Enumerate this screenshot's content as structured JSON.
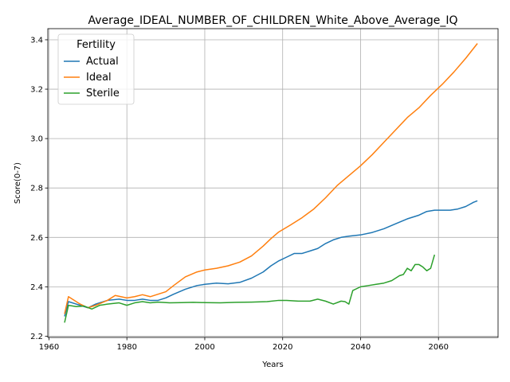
{
  "chart_data": {
    "type": "line",
    "title": "Average_IDEAL_NUMBER_OF_CHILDREN_White_Above_Average_IQ",
    "xlabel": "Years",
    "ylabel": "Score(0-7)",
    "xlim": [
      1959.7,
      2075.3
    ],
    "ylim": [
      2.195,
      3.445
    ],
    "xticks": [
      1960,
      1980,
      2000,
      2020,
      2040,
      2060
    ],
    "yticks": [
      2.2,
      2.4,
      2.6,
      2.8,
      3.0,
      3.2,
      3.4
    ],
    "xtick_labels": [
      "1960",
      "1980",
      "2000",
      "2020",
      "2040",
      "2060"
    ],
    "ytick_labels": [
      "2.2",
      "2.4",
      "2.6",
      "2.8",
      "3.0",
      "3.2",
      "3.4"
    ],
    "grid": true,
    "legend": {
      "title": "Fertility",
      "placement": "top-left"
    },
    "series": [
      {
        "name": "Actual",
        "color": "#1f77b4",
        "x": [
          1964,
          1965,
          1968,
          1970,
          1972,
          1975,
          1978,
          1980,
          1982,
          1984,
          1986,
          1988,
          1990,
          1992,
          1995,
          1998,
          2000,
          2003,
          2006,
          2009,
          2012,
          2015,
          2017,
          2019,
          2021,
          2023,
          2025,
          2027,
          2029,
          2031,
          2033,
          2035,
          2037,
          2040,
          2043,
          2046,
          2049,
          2052,
          2055,
          2057,
          2059,
          2061,
          2063,
          2065,
          2067,
          2069,
          2070
        ],
        "y": [
          2.28,
          2.34,
          2.325,
          2.315,
          2.33,
          2.345,
          2.35,
          2.345,
          2.345,
          2.35,
          2.345,
          2.345,
          2.355,
          2.37,
          2.39,
          2.405,
          2.41,
          2.415,
          2.412,
          2.418,
          2.435,
          2.46,
          2.485,
          2.505,
          2.52,
          2.535,
          2.535,
          2.545,
          2.555,
          2.575,
          2.59,
          2.6,
          2.605,
          2.61,
          2.62,
          2.635,
          2.655,
          2.675,
          2.69,
          2.705,
          2.71,
          2.71,
          2.71,
          2.715,
          2.725,
          2.742,
          2.748
        ]
      },
      {
        "name": "Ideal",
        "color": "#ff7f0e",
        "x": [
          1964,
          1965,
          1968,
          1970,
          1972,
          1975,
          1977,
          1980,
          1982,
          1984,
          1986,
          1988,
          1990,
          1992,
          1995,
          1998,
          2000,
          2003,
          2006,
          2009,
          2012,
          2015,
          2017,
          2019,
          2022,
          2025,
          2028,
          2031,
          2034,
          2037,
          2040,
          2043,
          2046,
          2049,
          2052,
          2055,
          2058,
          2061,
          2064,
          2067,
          2070
        ],
        "y": [
          2.29,
          2.36,
          2.33,
          2.315,
          2.325,
          2.345,
          2.365,
          2.355,
          2.36,
          2.368,
          2.36,
          2.37,
          2.38,
          2.405,
          2.44,
          2.46,
          2.468,
          2.475,
          2.485,
          2.5,
          2.525,
          2.565,
          2.595,
          2.622,
          2.65,
          2.68,
          2.715,
          2.76,
          2.81,
          2.85,
          2.89,
          2.935,
          2.985,
          3.035,
          3.085,
          3.125,
          3.175,
          3.22,
          3.27,
          3.325,
          3.385
        ]
      },
      {
        "name": "Sterile",
        "color": "#2ca02c",
        "x": [
          1964,
          1965,
          1967,
          1969,
          1971,
          1973,
          1975,
          1978,
          1980,
          1982,
          1984,
          1986,
          1988,
          1991,
          1994,
          1997,
          2000,
          2004,
          2008,
          2012,
          2016,
          2019,
          2021,
          2024,
          2027,
          2029,
          2031,
          2033,
          2035,
          2036,
          2037,
          2038,
          2040,
          2042,
          2044,
          2046,
          2048,
          2050,
          2051,
          2052,
          2053,
          2054,
          2055,
          2056,
          2057,
          2058,
          2059
        ],
        "y": [
          2.255,
          2.325,
          2.32,
          2.322,
          2.31,
          2.325,
          2.33,
          2.335,
          2.325,
          2.335,
          2.34,
          2.335,
          2.338,
          2.335,
          2.336,
          2.337,
          2.336,
          2.335,
          2.337,
          2.338,
          2.34,
          2.345,
          2.345,
          2.342,
          2.342,
          2.35,
          2.342,
          2.33,
          2.342,
          2.34,
          2.33,
          2.385,
          2.4,
          2.405,
          2.41,
          2.415,
          2.425,
          2.445,
          2.45,
          2.475,
          2.465,
          2.49,
          2.49,
          2.48,
          2.465,
          2.475,
          2.53
        ]
      }
    ]
  }
}
